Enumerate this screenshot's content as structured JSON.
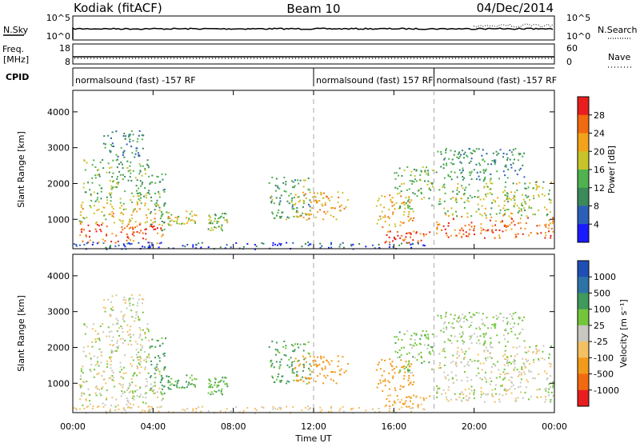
{
  "header": {
    "radar": "Kodiak (fitACF)",
    "beam": "Beam 10",
    "date": "04/Dec/2014"
  },
  "top_strip": {
    "left_label": "N.Sky",
    "right_label": "N.Search",
    "left_ticks": [
      "10^5",
      "10^0"
    ],
    "right_ticks": [
      "10^5",
      "10^0"
    ]
  },
  "freq_strip": {
    "left_label_1": "Freq.",
    "left_label_2": "[MHz]",
    "right_label": "Nave",
    "left_ticks": [
      "18",
      "8"
    ],
    "right_ticks": [
      "60",
      "0"
    ]
  },
  "cpid": {
    "label": "CPID",
    "segments": [
      {
        "text": "normalsound (fast) -157 RF",
        "start_hour": 0
      },
      {
        "text": "normalsound (fast) 157 RF",
        "start_hour": 12
      },
      {
        "text": "normalsound (fast) -157 RF",
        "start_hour": 18
      }
    ]
  },
  "time_axis": {
    "label": "Time UT",
    "ticks": [
      "00:00",
      "04:00",
      "08:00",
      "12:00",
      "16:00",
      "20:00",
      "00:00"
    ],
    "range_hours": [
      0,
      24
    ]
  },
  "chart_data": [
    {
      "type": "heatmap",
      "name": "power",
      "ylabel": "Slant Range [km]",
      "ylim": [
        180,
        4600
      ],
      "yticks": [
        "1000",
        "2000",
        "3000",
        "4000"
      ],
      "colorbar_label": "Power [dB]",
      "colorbar_ticks": [
        "28",
        "24",
        "20",
        "16",
        "12",
        "8",
        "4"
      ],
      "colorbar_range": [
        0,
        30
      ],
      "colors": [
        "#1a1aff",
        "#2c5fb8",
        "#3a8a5a",
        "#4fb24f",
        "#c9c32a",
        "#f2a31a",
        "#f26a10",
        "#e81e1e"
      ]
    },
    {
      "type": "heatmap",
      "name": "velocity",
      "ylabel": "Slant Range [km]",
      "ylim": [
        180,
        4600
      ],
      "yticks": [
        "1000",
        "2000",
        "3000",
        "4000"
      ],
      "colorbar_label": "Velocity [m s⁻¹]",
      "colorbar_ticks": [
        "1000",
        "500",
        "100",
        "25",
        "-25",
        "-100",
        "-500",
        "-1000"
      ],
      "colors": [
        "#1f4fb5",
        "#2e73a8",
        "#3f9a5c",
        "#73c63a",
        "#c8c8c0",
        "#f5c060",
        "#f29a1a",
        "#f26a10",
        "#e81e1e"
      ]
    }
  ],
  "scatter_regions": [
    {
      "t0": 0.3,
      "t1": 4.5,
      "r0": 350,
      "r1": 900,
      "val": 26,
      "vel": 0
    },
    {
      "t0": 0.3,
      "t1": 4.3,
      "r0": 900,
      "r1": 1500,
      "val": 18,
      "vel": 0
    },
    {
      "t0": 0.5,
      "t1": 3.8,
      "r0": 1500,
      "r1": 2700,
      "val": 13,
      "vel": 0
    },
    {
      "t0": 1.5,
      "t1": 3.5,
      "r0": 2700,
      "r1": 3500,
      "val": 9,
      "vel": 0
    },
    {
      "t0": 3.8,
      "t1": 4.6,
      "r0": 700,
      "r1": 2300,
      "val": 11,
      "vel": 150
    },
    {
      "t0": 4.6,
      "t1": 6.2,
      "r0": 850,
      "r1": 1250,
      "val": 18,
      "vel": 110
    },
    {
      "t0": 6.6,
      "t1": 7.7,
      "r0": 700,
      "r1": 1200,
      "val": 14,
      "vel": 90
    },
    {
      "t0": 9.7,
      "t1": 11.8,
      "r0": 1000,
      "r1": 2200,
      "val": 11,
      "vel": 120
    },
    {
      "t0": 11.0,
      "t1": 13.7,
      "r0": 1000,
      "r1": 1800,
      "val": 20,
      "vel": -180
    },
    {
      "t0": 15.1,
      "t1": 17.0,
      "r0": 800,
      "r1": 1700,
      "val": 21,
      "vel": -200
    },
    {
      "t0": 15.5,
      "t1": 17.8,
      "r0": 350,
      "r1": 700,
      "val": 26,
      "vel": -120
    },
    {
      "t0": 16.0,
      "t1": 17.9,
      "r0": 1300,
      "r1": 2500,
      "val": 13,
      "vel": 60
    },
    {
      "t0": 18.0,
      "t1": 23.9,
      "r0": 500,
      "r1": 1100,
      "val": 24,
      "vel": 0
    },
    {
      "t0": 18.2,
      "t1": 23.8,
      "r0": 1100,
      "r1": 2100,
      "val": 15,
      "vel": 0
    },
    {
      "t0": 18.0,
      "t1": 22.5,
      "r0": 2100,
      "r1": 3000,
      "val": 10,
      "vel": 40
    },
    {
      "t0": 0.0,
      "t1": 17.5,
      "r0": 180,
      "r1": 380,
      "val": 5,
      "vel": -40
    }
  ]
}
